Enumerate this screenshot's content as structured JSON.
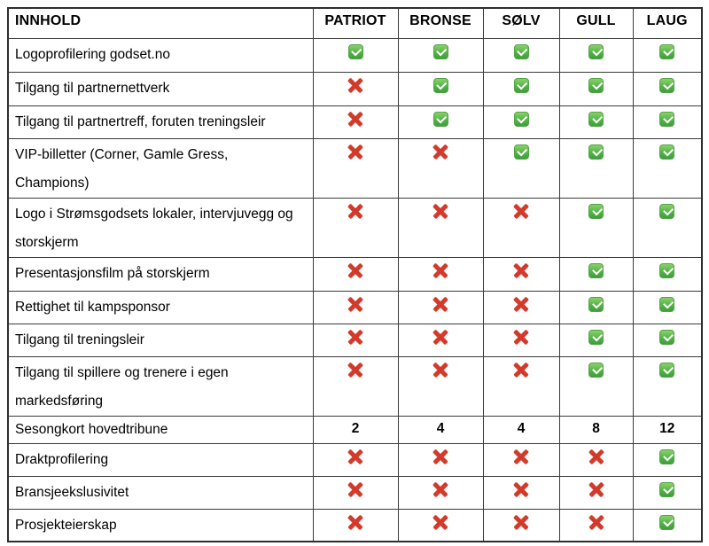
{
  "table": {
    "headers": [
      "INNHOLD",
      "PATRIOT",
      "BRONSE",
      "SØLV",
      "GULL",
      "LAUG"
    ],
    "colors": {
      "check_green_top": "#8ad167",
      "check_green_bottom": "#3e9e3a",
      "cross_red": "#d23b2b",
      "border": "#3a3a3a",
      "text": "#000000"
    },
    "icons": {
      "check": "check-icon",
      "cross": "cross-icon"
    },
    "rows": [
      {
        "label": "Logoprofilering godset.no",
        "values": [
          "check",
          "check",
          "check",
          "check",
          "check"
        ]
      },
      {
        "label": "Tilgang til partnernettverk",
        "values": [
          "cross",
          "check",
          "check",
          "check",
          "check"
        ]
      },
      {
        "label": "Tilgang til partnertreff, foruten treningsleir",
        "values": [
          "cross",
          "check",
          "check",
          "check",
          "check"
        ]
      },
      {
        "label": "VIP-billetter (Corner, Gamle Gress, Champions)",
        "values": [
          "cross",
          "cross",
          "check",
          "check",
          "check"
        ]
      },
      {
        "label": "Logo i Strømsgodsets lokaler, intervjuvegg og storskjerm",
        "values": [
          "cross",
          "cross",
          "cross",
          "check",
          "check"
        ]
      },
      {
        "label": "Presentasjonsfilm på storskjerm",
        "values": [
          "cross",
          "cross",
          "cross",
          "check",
          "check"
        ]
      },
      {
        "label": "Rettighet til kampsponsor",
        "values": [
          "cross",
          "cross",
          "cross",
          "check",
          "check"
        ]
      },
      {
        "label": "Tilgang til treningsleir",
        "values": [
          "cross",
          "cross",
          "cross",
          "check",
          "check"
        ]
      },
      {
        "label": "Tilgang til spillere og trenere i egen markedsføring",
        "values": [
          "cross",
          "cross",
          "cross",
          "check",
          "check"
        ]
      },
      {
        "label": "Sesongkort hovedtribune",
        "values": [
          "2",
          "4",
          "4",
          "8",
          "12"
        ]
      },
      {
        "label": "Draktprofilering",
        "values": [
          "cross",
          "cross",
          "cross",
          "cross",
          "check"
        ]
      },
      {
        "label": "Bransjeekslusivitet",
        "values": [
          "cross",
          "cross",
          "cross",
          "cross",
          "check"
        ]
      },
      {
        "label": "Prosjekteierskap",
        "values": [
          "cross",
          "cross",
          "cross",
          "cross",
          "check"
        ]
      }
    ]
  }
}
